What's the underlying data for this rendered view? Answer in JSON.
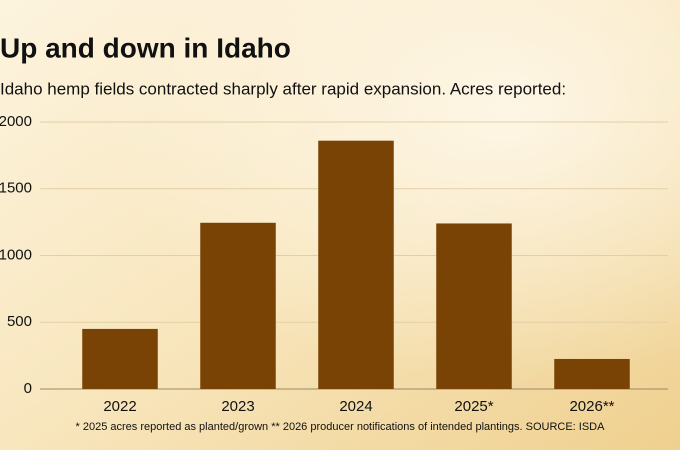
{
  "chart_data": {
    "type": "bar",
    "title": "Up and down in Idaho",
    "subtitle": "Idaho hemp fields contracted sharply after rapid expansion. Acres reported:",
    "categories": [
      "2022",
      "2023",
      "2024",
      "2025*",
      "2026**"
    ],
    "values": [
      450,
      1245,
      1860,
      1240,
      225
    ],
    "color": "#7a4306",
    "ylim": [
      0,
      2000
    ],
    "yticks": [
      0,
      500,
      1000,
      1500,
      2000
    ],
    "grid": true,
    "footnote": "* 2025 acres reported as planted/grown ** 2026 producer notifications of intended plantings. SOURCE: ISDA"
  }
}
